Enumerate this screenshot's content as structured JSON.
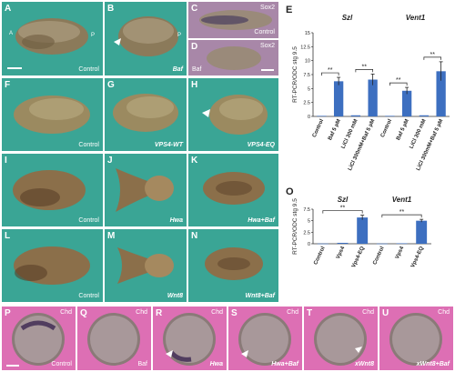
{
  "panels": {
    "A": {
      "letter": "A",
      "caption": "Control",
      "ap_left": "A",
      "ap_right": "P"
    },
    "B": {
      "letter": "B",
      "caption": "Baf",
      "ap_right": "P"
    },
    "C": {
      "letter": "C",
      "caption": "Control",
      "tag": "Sox2"
    },
    "D": {
      "letter": "D",
      "caption": "Baf",
      "tag": "Sox2"
    },
    "F": {
      "letter": "F",
      "caption": "Control"
    },
    "G": {
      "letter": "G",
      "caption": "VPS4-WT"
    },
    "H": {
      "letter": "H",
      "caption": "VPS4-EQ"
    },
    "I": {
      "letter": "I",
      "caption": "Control"
    },
    "J": {
      "letter": "J",
      "caption": "Hwa"
    },
    "K": {
      "letter": "K",
      "caption": "Hwa+Baf"
    },
    "L": {
      "letter": "L",
      "caption": "Control"
    },
    "M": {
      "letter": "M",
      "caption": "Wnt8"
    },
    "N": {
      "letter": "N",
      "caption": "Wnt8+Baf"
    },
    "P": {
      "letter": "P",
      "caption": "Control",
      "tag": "Chd"
    },
    "Q": {
      "letter": "Q",
      "caption": "Baf",
      "tag": "Chd"
    },
    "R": {
      "letter": "R",
      "caption": "Hwa",
      "tag": "Chd"
    },
    "S": {
      "letter": "S",
      "caption": "Hwa+Baf",
      "tag": "Chd"
    },
    "T": {
      "letter": "T",
      "caption": "xWnt8",
      "tag": "Chd"
    },
    "U": {
      "letter": "U",
      "caption": "xWnt8+Baf",
      "tag": "Chd"
    }
  },
  "chart_data": [
    {
      "type": "bar",
      "panel_letter": "E",
      "ylabel": "RT-PCR/ODC stg 9.5",
      "ylim": [
        0,
        15
      ],
      "yticks": [
        "0",
        "2.5",
        "5",
        "7.5",
        "10",
        "12.5",
        "15"
      ],
      "groups": [
        "Szl",
        "Vent1"
      ],
      "categories": [
        "Control",
        "Baf 5 µM",
        "LiCl 300 mM",
        "LiCl 300mM+Baf 5 µM",
        "Control",
        "Baf 5 µM",
        "LiCl 300 mM",
        "LiCl 300mM+Baf 5 µM"
      ],
      "values": [
        0.1,
        6.3,
        0.2,
        6.6,
        0.1,
        4.6,
        0.2,
        8.1
      ],
      "errors": [
        0.1,
        0.7,
        0.1,
        1.0,
        0.1,
        0.6,
        0.1,
        1.7
      ],
      "significance": [
        "**",
        "**",
        "**",
        "**"
      ],
      "bar_color": "#3d6fc0"
    },
    {
      "type": "bar",
      "panel_letter": "O",
      "ylabel": "RT-PCR/ODC stg 9.5",
      "ylim": [
        0,
        7.5
      ],
      "yticks": [
        "0",
        "2.5",
        "5",
        "7.5"
      ],
      "groups": [
        "Szl",
        "Vent1"
      ],
      "categories": [
        "Control",
        "Vps4",
        "Vps4-EQ",
        "Control",
        "Vps4",
        "Vps4-EQ"
      ],
      "values": [
        0.05,
        0.2,
        5.7,
        0.05,
        0.1,
        5.0
      ],
      "errors": [
        0.05,
        0.1,
        0.5,
        0.05,
        0.05,
        0.3
      ],
      "significance": [
        "**",
        "**"
      ],
      "bar_color": "#3d6fc0"
    }
  ]
}
